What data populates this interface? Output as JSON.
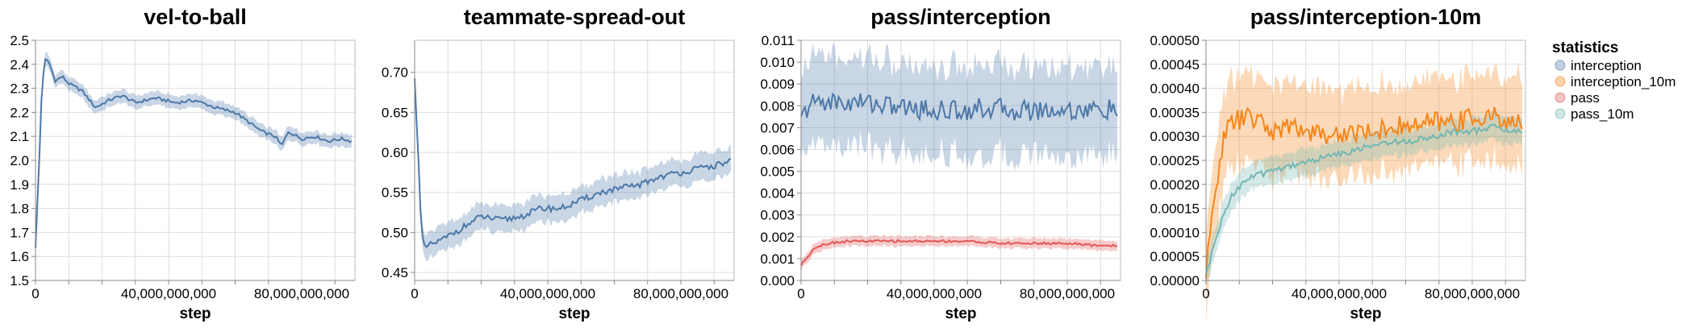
{
  "colors": {
    "interception": "#4c78a8",
    "interception_10m": "#f58518",
    "pass": "#e45756",
    "pass_10m": "#72b7b2"
  },
  "legend": {
    "title": "statistics",
    "items": [
      {
        "label": "interception",
        "color": "#4c78a8"
      },
      {
        "label": "interception_10m",
        "color": "#f58518"
      },
      {
        "label": "pass",
        "color": "#e45756"
      },
      {
        "label": "pass_10m",
        "color": "#72b7b2"
      }
    ]
  },
  "chart_data": [
    {
      "type": "line",
      "title": "vel-to-ball",
      "xlabel": "step",
      "ylabel": "",
      "xlim": [
        0,
        96000000000
      ],
      "xticks": [
        0,
        40000000000,
        80000000000
      ],
      "xtick_labels": [
        "0",
        "40,000,000,000",
        "80,000,000,000"
      ],
      "ylim": [
        1.5,
        2.5
      ],
      "yticks": [
        1.5,
        1.6,
        1.7,
        1.8,
        1.9,
        2.0,
        2.1,
        2.2,
        2.3,
        2.4,
        2.5
      ],
      "ytick_labels": [
        "1.5",
        "1.6",
        "1.7",
        "1.8",
        "1.9",
        "2.0",
        "2.1",
        "2.2",
        "2.3",
        "2.4",
        "2.5"
      ],
      "series": [
        {
          "key": "interception",
          "x": [
            0,
            1000000000,
            2000000000,
            3000000000,
            4000000000,
            6000000000,
            8000000000,
            10000000000,
            14000000000,
            18000000000,
            22000000000,
            26000000000,
            30000000000,
            36000000000,
            42000000000,
            48000000000,
            54000000000,
            60000000000,
            64000000000,
            68000000000,
            72000000000,
            74000000000,
            76000000000,
            80000000000,
            84000000000,
            88000000000,
            92000000000,
            95000000000
          ],
          "values": [
            1.64,
            1.95,
            2.33,
            2.42,
            2.41,
            2.33,
            2.35,
            2.32,
            2.29,
            2.22,
            2.25,
            2.27,
            2.24,
            2.26,
            2.24,
            2.25,
            2.22,
            2.2,
            2.16,
            2.12,
            2.1,
            2.06,
            2.12,
            2.09,
            2.1,
            2.08,
            2.09,
            2.08
          ],
          "band": 0.03
        }
      ]
    },
    {
      "type": "line",
      "title": "teammate-spread-out",
      "xlabel": "step",
      "ylabel": "",
      "xlim": [
        0,
        96000000000
      ],
      "xticks": [
        0,
        40000000000,
        80000000000
      ],
      "xtick_labels": [
        "0",
        "40,000,000,000",
        "80,000,000,000"
      ],
      "ylim": [
        0.44,
        0.74
      ],
      "yticks": [
        0.45,
        0.5,
        0.55,
        0.6,
        0.65,
        0.7
      ],
      "ytick_labels": [
        "0.45",
        "0.50",
        "0.55",
        "0.60",
        "0.65",
        "0.70"
      ],
      "series": [
        {
          "key": "interception",
          "x": [
            0,
            1000000000,
            2000000000,
            3000000000,
            5000000000,
            8000000000,
            12000000000,
            16000000000,
            20000000000,
            26000000000,
            32000000000,
            38000000000,
            44000000000,
            50000000000,
            56000000000,
            62000000000,
            68000000000,
            74000000000,
            80000000000,
            86000000000,
            92000000000,
            95000000000
          ],
          "values": [
            0.69,
            0.61,
            0.5,
            0.48,
            0.485,
            0.49,
            0.5,
            0.51,
            0.52,
            0.515,
            0.52,
            0.53,
            0.53,
            0.54,
            0.55,
            0.555,
            0.56,
            0.57,
            0.575,
            0.58,
            0.585,
            0.59
          ],
          "band": 0.018
        }
      ]
    },
    {
      "type": "line",
      "title": "pass/interception",
      "xlabel": "step",
      "ylabel": "",
      "xlim": [
        0,
        96000000000
      ],
      "xticks": [
        0,
        40000000000,
        80000000000
      ],
      "xtick_labels": [
        "0",
        "40,000,000,000",
        "80,000,000,000"
      ],
      "ylim": [
        0,
        0.011
      ],
      "yticks": [
        0,
        0.001,
        0.002,
        0.003,
        0.004,
        0.005,
        0.006,
        0.007,
        0.008,
        0.009,
        0.01,
        0.011
      ],
      "ytick_labels": [
        "0.000",
        "0.001",
        "0.002",
        "0.003",
        "0.004",
        "0.005",
        "0.006",
        "0.007",
        "0.008",
        "0.009",
        "0.010",
        "0.011"
      ],
      "series": [
        {
          "key": "interception",
          "x": [
            0,
            2000000000,
            4000000000,
            8000000000,
            14000000000,
            20000000000,
            26000000000,
            32000000000,
            40000000000,
            48000000000,
            56000000000,
            64000000000,
            72000000000,
            80000000000,
            88000000000,
            95000000000
          ],
          "values": [
            0.0073,
            0.0079,
            0.0082,
            0.0082,
            0.0081,
            0.0082,
            0.008,
            0.0079,
            0.0078,
            0.0078,
            0.0079,
            0.0078,
            0.0078,
            0.0078,
            0.0078,
            0.0078
          ],
          "band": 0.0022
        },
        {
          "key": "pass",
          "x": [
            0,
            2000000000,
            4000000000,
            8000000000,
            14000000000,
            20000000000,
            30000000000,
            40000000000,
            50000000000,
            60000000000,
            70000000000,
            80000000000,
            88000000000,
            95000000000
          ],
          "values": [
            0.0007,
            0.0011,
            0.0015,
            0.0017,
            0.0018,
            0.0018,
            0.0018,
            0.0018,
            0.0018,
            0.0017,
            0.0017,
            0.0017,
            0.0016,
            0.0016
          ],
          "band": 0.00025
        }
      ]
    },
    {
      "type": "line",
      "title": "pass/interception-10m",
      "xlabel": "step",
      "ylabel": "",
      "xlim": [
        0,
        96000000000
      ],
      "xticks": [
        0,
        40000000000,
        80000000000
      ],
      "xtick_labels": [
        "0",
        "40,000,000,000",
        "80,000,000,000"
      ],
      "ylim": [
        0,
        0.0005
      ],
      "yticks": [
        0,
        5e-05,
        0.0001,
        0.00015,
        0.0002,
        0.00025,
        0.0003,
        0.00035,
        0.0004,
        0.00045,
        0.0005
      ],
      "ytick_labels": [
        "0.00000",
        "0.00005",
        "0.00010",
        "0.00015",
        "0.00020",
        "0.00025",
        "0.00030",
        "0.00035",
        "0.00040",
        "0.00045",
        "0.00050"
      ],
      "series": [
        {
          "key": "interception_10m",
          "x": [
            0,
            2000000000,
            4000000000,
            6000000000,
            8000000000,
            12000000000,
            16000000000,
            20000000000,
            26000000000,
            32000000000,
            38000000000,
            44000000000,
            50000000000,
            56000000000,
            62000000000,
            68000000000,
            74000000000,
            80000000000,
            86000000000,
            92000000000,
            95000000000
          ],
          "values": [
            1e-05,
            0.00014,
            0.00025,
            0.00031,
            0.00033,
            0.00034,
            0.00033,
            0.00031,
            0.00032,
            0.00031,
            0.0003,
            0.00031,
            0.00031,
            0.00032,
            0.00032,
            0.00033,
            0.00033,
            0.00034,
            0.00034,
            0.00033,
            0.00032
          ],
          "band": 0.0001
        },
        {
          "key": "pass_10m",
          "x": [
            0,
            2000000000,
            4000000000,
            6000000000,
            8000000000,
            12000000000,
            16000000000,
            20000000000,
            26000000000,
            32000000000,
            38000000000,
            44000000000,
            50000000000,
            56000000000,
            62000000000,
            68000000000,
            74000000000,
            80000000000,
            86000000000,
            92000000000,
            95000000000
          ],
          "values": [
            1e-05,
            6e-05,
            0.00011,
            0.00015,
            0.00018,
            0.00021,
            0.00022,
            0.00023,
            0.00024,
            0.00025,
            0.00026,
            0.00027,
            0.00028,
            0.00029,
            0.00029,
            0.0003,
            0.00031,
            0.00031,
            0.00032,
            0.00031,
            0.00031
          ],
          "band": 3e-05
        }
      ]
    }
  ]
}
